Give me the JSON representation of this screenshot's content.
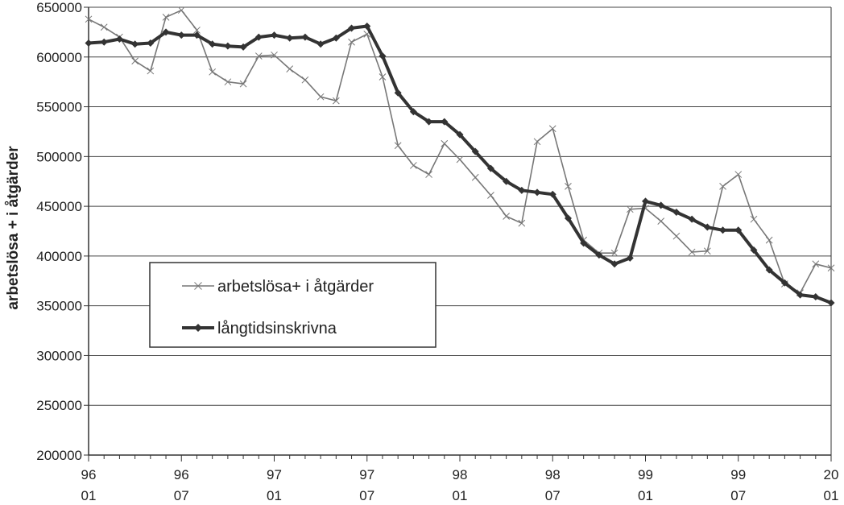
{
  "chart_data": {
    "type": "line",
    "title": "",
    "xlabel": "",
    "ylabel": "arbetslösa + i åtgärder",
    "ylim": [
      200000,
      650000
    ],
    "y_ticks": [
      "200000",
      "250000",
      "300000",
      "350000",
      "400000",
      "450000",
      "500000",
      "550000",
      "600000",
      "650000"
    ],
    "x_ticks": [
      {
        "year": "96",
        "month": "01"
      },
      {
        "year": "96",
        "month": "07"
      },
      {
        "year": "97",
        "month": "01"
      },
      {
        "year": "97",
        "month": "07"
      },
      {
        "year": "98",
        "month": "01"
      },
      {
        "year": "98",
        "month": "07"
      },
      {
        "year": "99",
        "month": "01"
      },
      {
        "year": "99",
        "month": "07"
      },
      {
        "year": "20",
        "month": "01"
      }
    ],
    "x_start": "1996-01",
    "x_end": "2000-01",
    "grid": true,
    "legend_position": "lower-left",
    "series": [
      {
        "name": "arbetslösa+ i åtgärder",
        "color": "#777777",
        "marker": "x",
        "values": [
          638000,
          630000,
          620000,
          596000,
          586000,
          640000,
          647000,
          627000,
          585000,
          575000,
          573000,
          601000,
          602000,
          588000,
          577000,
          560000,
          556000,
          615000,
          623000,
          580000,
          511000,
          491000,
          482000,
          513000,
          497000,
          479000,
          461000,
          440000,
          433000,
          515000,
          528000,
          470000,
          416000,
          403000,
          403000,
          447000,
          448000,
          435000,
          420000,
          404000,
          405000,
          470000,
          482000,
          437000,
          416000,
          372000,
          363000,
          392000,
          388000
        ]
      },
      {
        "name": "långtidsinskrivna",
        "color": "#333333",
        "marker": "diamond",
        "values": [
          614000,
          615000,
          618000,
          613000,
          614000,
          625000,
          622000,
          622000,
          613000,
          611000,
          610000,
          620000,
          622000,
          619000,
          620000,
          613000,
          619000,
          629000,
          631000,
          601000,
          564000,
          545000,
          535000,
          535000,
          522000,
          505000,
          488000,
          475000,
          466000,
          464000,
          462000,
          438000,
          413000,
          401000,
          392000,
          398000,
          455000,
          451000,
          444000,
          437000,
          429000,
          426000,
          426000,
          406000,
          386000,
          373000,
          361000,
          359000,
          353000
        ]
      }
    ]
  }
}
